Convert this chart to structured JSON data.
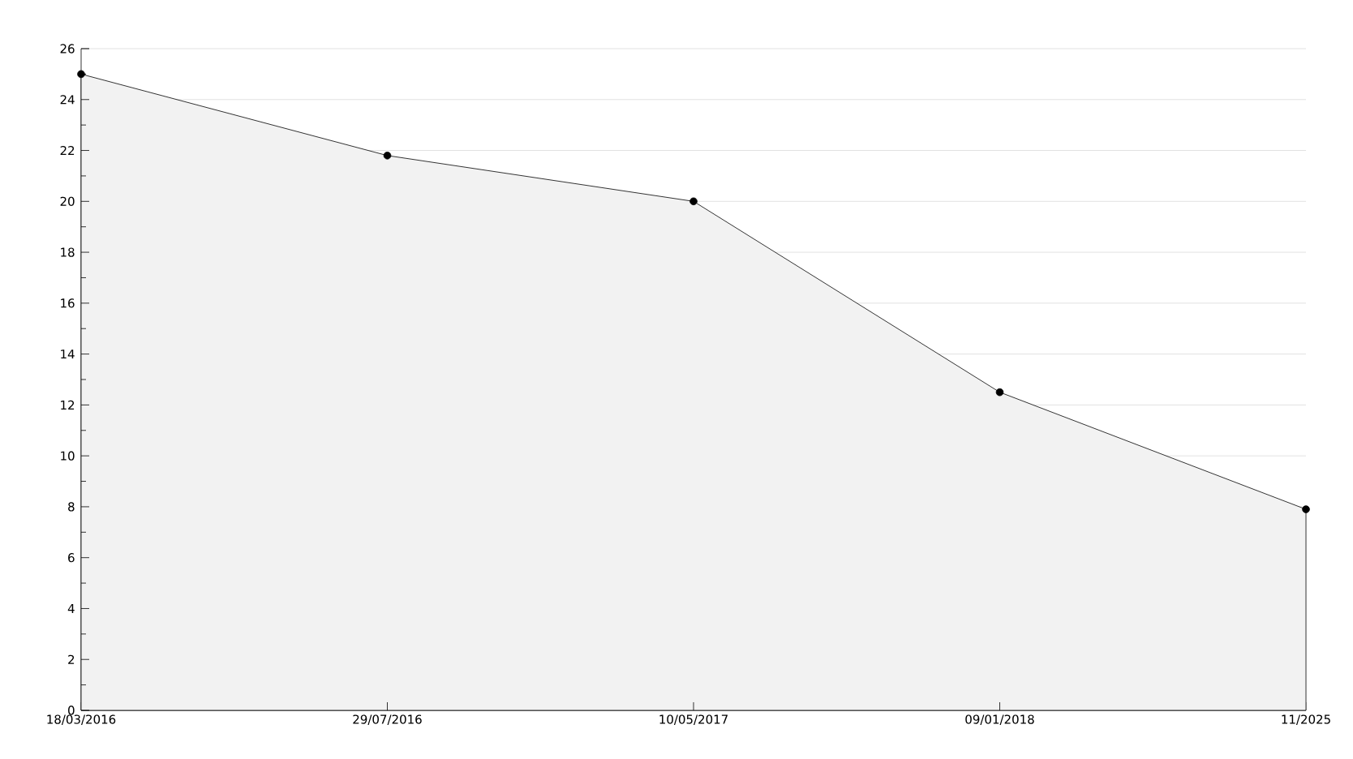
{
  "chart_data": {
    "type": "area",
    "categories": [
      "18/03/2016",
      "29/07/2016",
      "10/05/2017",
      "09/01/2018",
      "11/2025"
    ],
    "values": [
      25,
      21.8,
      20,
      12.5,
      7.9
    ],
    "color": "#f2f2f2",
    "ylim": [
      0,
      26
    ],
    "yticks": [
      0,
      {
        "value": 1,
        "label": null
      },
      2,
      {
        "value": 3,
        "label": null
      },
      4,
      {
        "value": 5,
        "label": null
      },
      6,
      {
        "value": 7,
        "label": null
      },
      8,
      {
        "value": 9,
        "label": null
      },
      10,
      {
        "value": 11,
        "label": null
      },
      12,
      {
        "value": 13,
        "label": null
      },
      14,
      {
        "value": 15,
        "label": null
      },
      16,
      {
        "value": 17,
        "label": null
      },
      18,
      {
        "value": 19,
        "label": null
      },
      20,
      {
        "value": 21,
        "label": null
      },
      22,
      {
        "value": 23,
        "label": null
      },
      24,
      {
        "value": 25,
        "label": null
      },
      26
    ],
    "grid": "y",
    "marker": "circle",
    "line_style": "solid"
  }
}
